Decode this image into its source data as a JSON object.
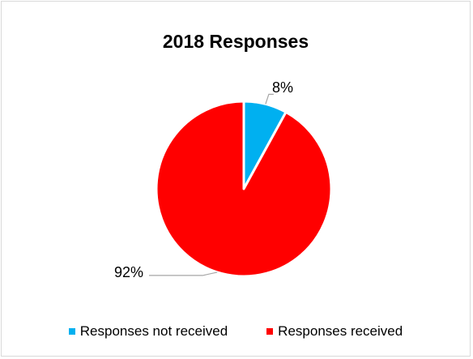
{
  "chart_data": {
    "type": "pie",
    "title": "2018 Responses",
    "categories": [
      "Responses not received",
      "Responses received"
    ],
    "values": [
      8,
      92
    ],
    "data_labels": [
      "8%",
      "92%"
    ],
    "colors": [
      "#00b0f0",
      "#ff0000"
    ],
    "legend_position": "bottom"
  }
}
